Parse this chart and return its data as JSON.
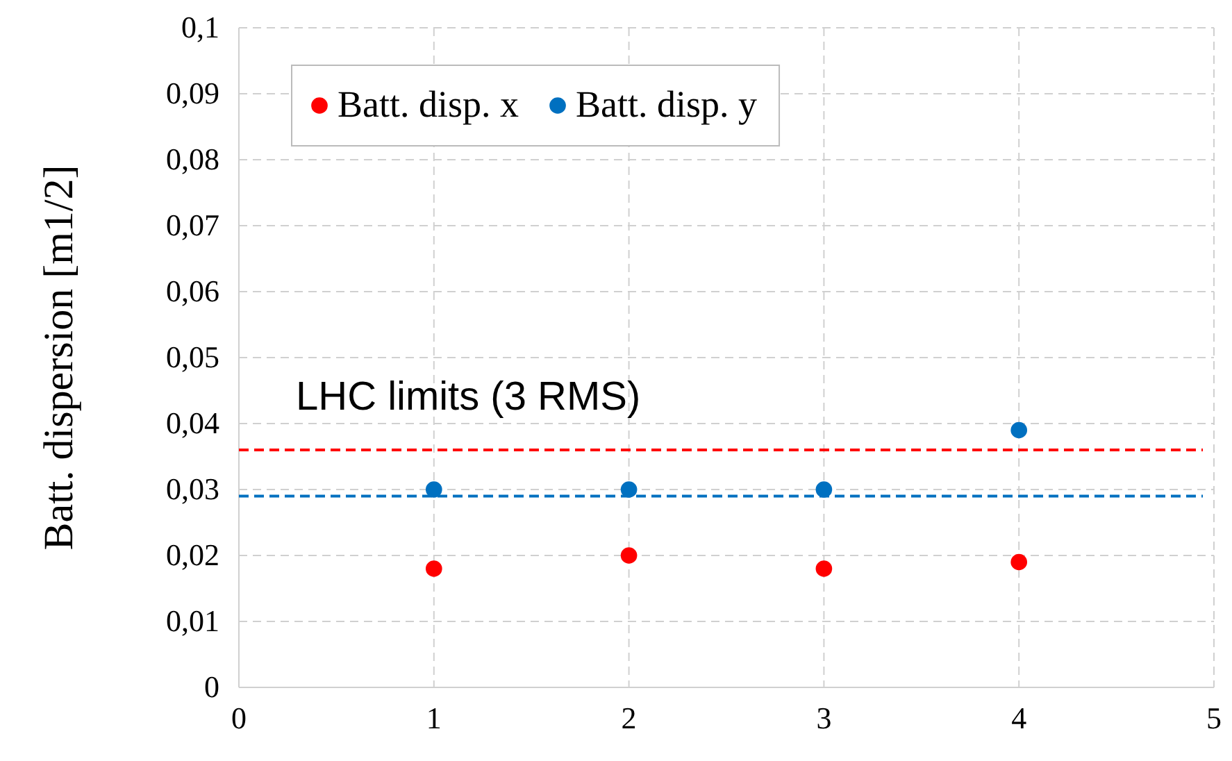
{
  "chart_data": {
    "type": "scatter",
    "ylabel": "Batt. dispersion [m1/2]",
    "x": [
      1,
      2,
      3,
      4
    ],
    "series": [
      {
        "name": "Batt. disp. x",
        "color": "#ff0000",
        "values": [
          0.018,
          0.02,
          0.018,
          0.019
        ]
      },
      {
        "name": "Batt. disp. y",
        "color": "#0070c0",
        "values": [
          0.03,
          0.03,
          0.03,
          0.039
        ]
      }
    ],
    "ref_lines": [
      {
        "axis": "y",
        "value": 0.036,
        "color": "#ff0000",
        "line_style": "dashed"
      },
      {
        "axis": "y",
        "value": 0.029,
        "color": "#0070c0",
        "line_style": "dashed"
      }
    ],
    "annotations": [
      "LHC limits (3 RMS)"
    ],
    "xlim": [
      0,
      5
    ],
    "xticks": [
      0,
      1,
      2,
      3,
      4,
      5
    ],
    "ylim": [
      0,
      0.1
    ],
    "yticks": [
      0,
      {
        "value": 0.01,
        "label": "0,01"
      },
      {
        "value": 0.02,
        "label": "0,02"
      },
      {
        "value": 0.03,
        "label": "0,03"
      },
      {
        "value": 0.04,
        "label": "0,04"
      },
      {
        "value": 0.05,
        "label": "0,05"
      },
      {
        "value": 0.06,
        "label": "0,06"
      },
      {
        "value": 0.07,
        "label": "0,07"
      },
      {
        "value": 0.08,
        "label": "0,08"
      },
      {
        "value": 0.09,
        "label": "0,09"
      },
      {
        "value": 0.1,
        "label": "0,1"
      }
    ],
    "grid": true,
    "legend": "top left",
    "marker": "circle"
  }
}
